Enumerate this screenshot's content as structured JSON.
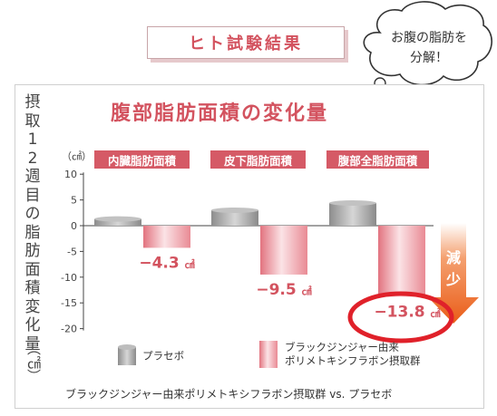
{
  "badge": "ヒト試験結果",
  "bubble": [
    "お腹の脂肪を",
    "分解！"
  ],
  "ylabel": "摂取12週目の脂肪面積変化量",
  "unit_label": "（㎠）",
  "chart_data": {
    "type": "bar",
    "title": "腹部脂肪面積の変化量",
    "categories": [
      "内臓脂肪面積",
      "皮下脂肪面積",
      "腹部全脂肪面積"
    ],
    "series": [
      {
        "name": "プラセボ",
        "values": [
          1.3,
          3.0,
          4.4
        ]
      },
      {
        "name": "ブラックジンジャー由来ポリメトキシフラボン摂取群",
        "values": [
          -4.3,
          -9.5,
          -13.8
        ]
      }
    ],
    "value_labels": [
      "-4.3",
      "-9.5",
      "-13.8"
    ],
    "value_unit": "㎠",
    "yticks": [
      10,
      5,
      0,
      -5,
      -10,
      -15,
      -20
    ],
    "ylim": [
      -20,
      10
    ],
    "ytick_unit": "（㎠）",
    "grid": false,
    "annotation": "減少",
    "highlight": "-13.8",
    "legend": [
      "プラセボ",
      "ブラックジンジャー由来",
      "ポリメトキシフラボン摂取群"
    ],
    "footnote": "ブラックジンジャー由来ポリメトキシフラボン摂取群 vs. プラセボ",
    "colors": {
      "accent": "#d3535f",
      "placebo": "#9a9a9a",
      "treatment": "#e58b95",
      "arrow": "#ec6b2a",
      "highlight_ring": "#e0212a"
    }
  }
}
